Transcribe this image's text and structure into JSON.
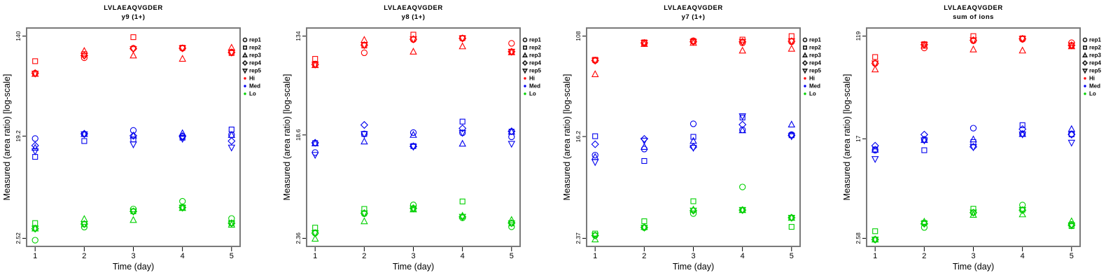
{
  "colors": {
    "hi": "#FF0000",
    "med": "#0000EE",
    "lo": "#00D000",
    "frame": "#7A7A7A",
    "tick": "#000000",
    "legend_symbol": "#1A1A1A"
  },
  "legend": {
    "reps": [
      {
        "label": "rep1",
        "symbol": "circle"
      },
      {
        "label": "rep2",
        "symbol": "square"
      },
      {
        "label": "rep3",
        "symbol": "triangle-up"
      },
      {
        "label": "rep4",
        "symbol": "diamond"
      },
      {
        "label": "rep5",
        "symbol": "triangle-down"
      }
    ],
    "levels": [
      {
        "label": "Hi",
        "color": "#FF0000"
      },
      {
        "label": "Med",
        "color": "#0000EE"
      },
      {
        "label": "Lo",
        "color": "#00D000"
      }
    ]
  },
  "chart_data": [
    {
      "type": "scatter",
      "title": "LVLAEAQVGDER",
      "subtitle": "y9 (1+)",
      "xlabel": "Time (day)",
      "ylabel": "Measured (area ratio) [log-scale]",
      "x": [
        1,
        2,
        3,
        4,
        5
      ],
      "y_scale": "log",
      "grid": false,
      "y_ticks": [
        2.52,
        19.2,
        140
      ],
      "y_tick_labels": [
        "2.52",
        "19.2",
        "140"
      ],
      "series": [
        {
          "name": "Hi",
          "color": "#FF0000",
          "reps": {
            "rep1": [
              67,
              91,
              110,
              110,
              102
            ],
            "rep2": [
              85,
              98,
              137,
              111,
              100
            ],
            "rep3": [
              66,
              104,
              95,
              89,
              111
            ],
            "rep4": [
              67,
              95,
              109,
              110,
              101
            ],
            "rep5": [
              66.5,
              95,
              108,
              110,
              101
            ]
          }
        },
        {
          "name": "Med",
          "color": "#0000EE",
          "reps": {
            "rep1": [
              18.3,
              20.0,
              21.5,
              19.0,
              19.7
            ],
            "rep2": [
              12.7,
              17.4,
              18.0,
              18.6,
              21.9
            ],
            "rep3": [
              15.2,
              20.0,
              19.4,
              20.3,
              19.6
            ],
            "rep4": [
              15.9,
              20.1,
              19.3,
              19.2,
              17.4
            ],
            "rep5": [
              14.2,
              19.9,
              16.3,
              18.2,
              15.3
            ]
          }
        },
        {
          "name": "Lo",
          "color": "#00D000",
          "reps": {
            "rep1": [
              2.43,
              3.15,
              4.51,
              5.26,
              3.74
            ],
            "rep2": [
              3.41,
              3.33,
              4.31,
              4.66,
              3.41
            ],
            "rep3": [
              3.06,
              3.69,
              3.62,
              4.6,
              3.3
            ],
            "rep4": [
              3.05,
              3.35,
              4.3,
              4.64,
              3.4
            ],
            "rep5": [
              3.06,
              3.34,
              4.29,
              4.63,
              3.39
            ]
          }
        }
      ]
    },
    {
      "type": "scatter",
      "title": "LVLAEAQVGDER",
      "subtitle": "y8 (1+)",
      "xlabel": "Time (day)",
      "ylabel": "Measured (area ratio) [log-scale]",
      "x": [
        1,
        2,
        3,
        4,
        5
      ],
      "y_scale": "log",
      "grid": false,
      "y_ticks": [
        2.36,
        18.6,
        134
      ],
      "y_tick_labels": [
        "2.36",
        "18.6",
        "134"
      ],
      "series": [
        {
          "name": "Hi",
          "color": "#FF0000",
          "reps": {
            "rep1": [
              76,
              96,
              125,
              128,
              116
            ],
            "rep2": [
              85,
              111,
              138,
              129,
              98
            ],
            "rep3": [
              75,
              124,
              98,
              109,
              97
            ],
            "rep4": [
              76,
              112,
              126,
              128,
              98
            ],
            "rep5": [
              76,
              112,
              126,
              128,
              98
            ]
          }
        },
        {
          "name": "Med",
          "color": "#0000EE",
          "reps": {
            "rep1": [
              13.1,
              19.0,
              19.5,
              19.4,
              17.9
            ],
            "rep2": [
              15.8,
              19.0,
              14.9,
              24.3,
              19.9
            ],
            "rep3": [
              15.7,
              16.3,
              18.6,
              15.6,
              19.8
            ],
            "rep4": [
              15.9,
              22.7,
              14.8,
              21.2,
              20.0
            ],
            "rep5": [
              12.5,
              18.9,
              14.7,
              19.4,
              15.6
            ]
          }
        },
        {
          "name": "Lo",
          "color": "#00D000",
          "reps": {
            "rep1": [
              2.62,
              3.86,
              4.6,
              3.55,
              2.97
            ],
            "rep2": [
              2.92,
              4.24,
              4.25,
              4.93,
              3.18
            ],
            "rep3": [
              2.34,
              3.31,
              4.2,
              3.7,
              3.4
            ],
            "rep4": [
              2.62,
              3.9,
              4.3,
              3.62,
              3.2
            ],
            "rep5": [
              2.62,
              3.89,
              4.29,
              3.63,
              3.19
            ]
          }
        }
      ]
    },
    {
      "type": "scatter",
      "title": "LVLAEAQVGDER",
      "subtitle": "y7 (1+)",
      "xlabel": "Time (day)",
      "ylabel": "Measured (area ratio) [log-scale]",
      "x": [
        1,
        2,
        3,
        4,
        5
      ],
      "y_scale": "log",
      "grid": false,
      "y_ticks": [
        2.37,
        16.2,
        108
      ],
      "y_tick_labels": [
        "2.37",
        "16.2",
        "108"
      ],
      "series": [
        {
          "name": "Hi",
          "color": "#FF0000",
          "reps": {
            "rep1": [
              68,
              94,
              99,
              95,
              97
            ],
            "rep2": [
              69,
              96,
              98,
              101,
              108
            ],
            "rep3": [
              52.5,
              93,
              95,
              82,
              85
            ],
            "rep4": [
              68,
              95,
              97,
              97,
              98
            ],
            "rep5": [
              68,
              95,
              97,
              97,
              98
            ]
          }
        },
        {
          "name": "Med",
          "color": "#0000EE",
          "reps": {
            "rep1": [
              11.4,
              12.8,
              20.6,
              18.4,
              16.8
            ],
            "rep2": [
              16.3,
              10.2,
              16.1,
              23.2,
              16.6
            ],
            "rep3": [
              11.0,
              13.3,
              14.9,
              18.2,
              20.3
            ],
            "rep4": [
              14.0,
              15.5,
              13.3,
              20.3,
              16.5
            ],
            "rep5": [
              10.0,
              15.0,
              13.1,
              23.8,
              16.3
            ]
          }
        },
        {
          "name": "Lo",
          "color": "#00D000",
          "reps": {
            "rep1": [
              2.5,
              2.9,
              3.78,
              6.25,
              3.5
            ],
            "rep2": [
              2.59,
              3.27,
              4.77,
              4.05,
              2.94
            ],
            "rep3": [
              2.32,
              2.93,
              4.07,
              4.03,
              3.49
            ],
            "rep4": [
              2.5,
              2.91,
              4.0,
              4.04,
              3.5
            ],
            "rep5": [
              2.5,
              2.9,
              4.01,
              4.05,
              3.5
            ]
          }
        }
      ]
    },
    {
      "type": "scatter",
      "title": "LVLAEAQVGDER",
      "subtitle": "sum of ions",
      "xlabel": "Time (day)",
      "ylabel": "Measured (area ratio) [log-scale]",
      "x": [
        1,
        2,
        3,
        4,
        5
      ],
      "y_scale": "log",
      "grid": false,
      "y_ticks": [
        2.58,
        17,
        119
      ],
      "y_tick_labels": [
        "2.58",
        "17",
        "119"
      ],
      "series": [
        {
          "name": "Hi",
          "color": "#FF0000",
          "reps": {
            "rep1": [
              70.8,
              95,
              109,
              112,
              105
            ],
            "rep2": [
              80,
              102,
              119,
              114,
              99.5
            ],
            "rep3": [
              63.3,
              99,
              92.3,
              90.4,
              98
            ],
            "rep4": [
              71,
              101,
              110,
              113,
              100
            ],
            "rep5": [
              71,
              101,
              110,
              113,
              100
            ]
          }
        },
        {
          "name": "Med",
          "color": "#0000EE",
          "reps": {
            "rep1": [
              13.7,
              16.8,
              20.8,
              18.7,
              18.7
            ],
            "rep2": [
              13.9,
              13.7,
              16.0,
              22.0,
              18.5
            ],
            "rep3": [
              13.8,
              16.6,
              16.8,
              18.6,
              20.4
            ],
            "rep4": [
              14.9,
              18.4,
              14.6,
              20.4,
              18.4
            ],
            "rep5": [
              11.6,
              16.5,
              14.5,
              18.5,
              15.8
            ]
          }
        },
        {
          "name": "Lo",
          "color": "#00D000",
          "reps": {
            "rep1": [
              2.52,
              3.17,
              4.2,
              4.85,
              3.36
            ],
            "rep2": [
              2.95,
              3.45,
              4.52,
              4.44,
              3.25
            ],
            "rep3": [
              2.52,
              3.53,
              4.02,
              4.06,
              3.56
            ],
            "rep4": [
              2.52,
              3.4,
              4.2,
              4.4,
              3.3
            ],
            "rep5": [
              2.52,
              3.4,
              4.21,
              4.41,
              3.31
            ]
          }
        }
      ]
    }
  ]
}
